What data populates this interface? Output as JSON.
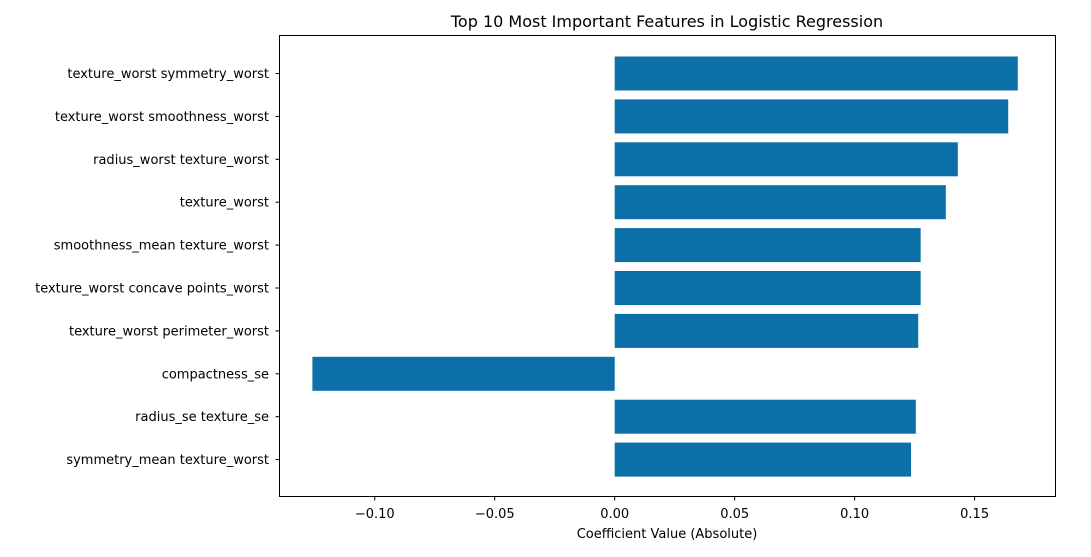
{
  "chart_data": {
    "type": "bar",
    "orientation": "horizontal",
    "title": "Top 10 Most Important Features in Logistic Regression",
    "xlabel": "Coefficient Value (Absolute)",
    "ylabel": "",
    "xlim": [
      -0.1395,
      0.1835
    ],
    "grid": false,
    "color": "#0c6fa7",
    "xticks": [
      -0.1,
      -0.05,
      0.0,
      0.05,
      0.1,
      0.15
    ],
    "xtick_labels": [
      "−0.10",
      "−0.05",
      "0.00",
      "0.05",
      "0.10",
      "0.15"
    ],
    "categories": [
      "texture_worst symmetry_worst",
      "texture_worst smoothness_worst",
      "radius_worst texture_worst",
      "texture_worst",
      "smoothness_mean texture_worst",
      "texture_worst concave points_worst",
      "texture_worst perimeter_worst",
      "compactness_se",
      "radius_se texture_se",
      "symmetry_mean texture_worst"
    ],
    "values": [
      0.168,
      0.164,
      0.143,
      0.138,
      0.1275,
      0.1275,
      0.1265,
      -0.126,
      0.1255,
      0.1235
    ]
  }
}
